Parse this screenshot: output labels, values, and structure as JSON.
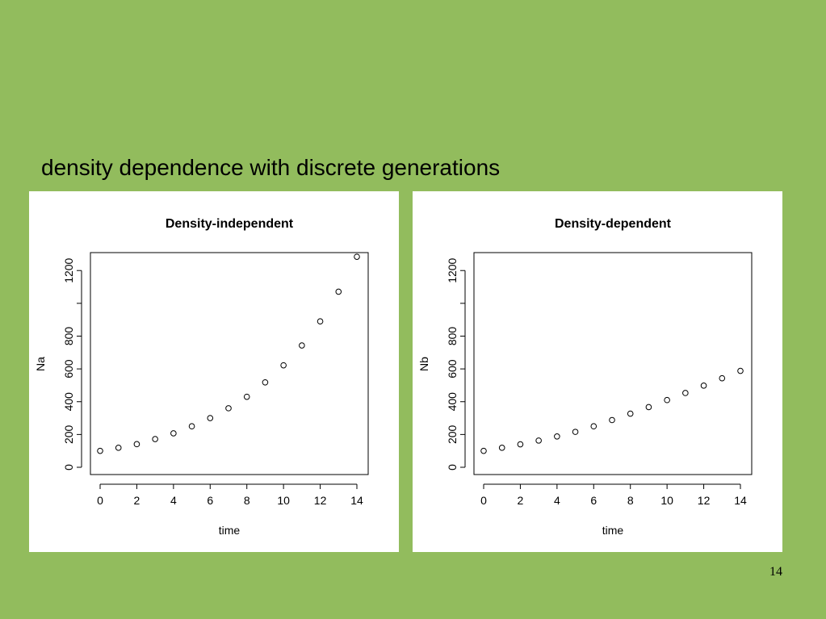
{
  "slide": {
    "title": "density dependence with discrete generations",
    "page_number": "14"
  },
  "chart_data": [
    {
      "type": "scatter",
      "title": "Density-independent",
      "xlabel": "time",
      "ylabel": "Na",
      "xlim": [
        0,
        14
      ],
      "ylim": [
        0,
        1270
      ],
      "x_ticks": [
        0,
        2,
        4,
        6,
        8,
        10,
        12,
        14
      ],
      "y_ticks": [
        0,
        200,
        400,
        600,
        800,
        1000,
        1200
      ],
      "y_tick_labels": [
        "0",
        "200",
        "400",
        "600",
        "800",
        "",
        "1200"
      ],
      "grid": false,
      "series": [
        {
          "x": [
            0,
            1,
            2,
            3,
            4,
            5,
            6,
            7,
            8,
            9,
            10,
            11,
            12,
            13,
            14
          ],
          "y": [
            100,
            119,
            141,
            172,
            207,
            250,
            300,
            360,
            430,
            518,
            622,
            743,
            890,
            1071,
            1284
          ]
        }
      ]
    },
    {
      "type": "scatter",
      "title": "Density-dependent",
      "xlabel": "time",
      "ylabel": "Nb",
      "xlim": [
        0,
        14
      ],
      "ylim": [
        0,
        1270
      ],
      "x_ticks": [
        0,
        2,
        4,
        6,
        8,
        10,
        12,
        14
      ],
      "y_ticks": [
        0,
        200,
        400,
        600,
        800,
        1000,
        1200
      ],
      "y_tick_labels": [
        "0",
        "200",
        "400",
        "600",
        "800",
        "",
        "1200"
      ],
      "grid": false,
      "series": [
        {
          "x": [
            0,
            1,
            2,
            3,
            4,
            5,
            6,
            7,
            8,
            9,
            10,
            11,
            12,
            13,
            14
          ],
          "y": [
            100,
            119,
            140,
            163,
            188,
            216,
            250,
            288,
            327,
            367,
            410,
            453,
            498,
            543,
            588
          ]
        }
      ]
    }
  ]
}
